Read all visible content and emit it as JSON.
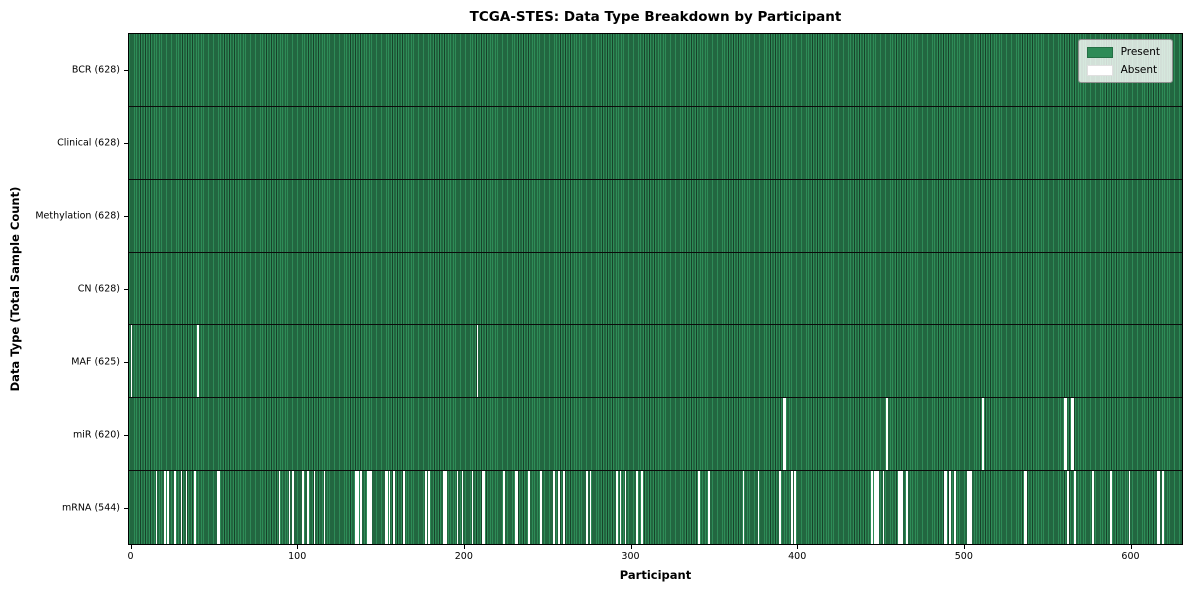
{
  "title": "TCGA-STES: Data Type Breakdown by Participant",
  "chart_data": {
    "type": "heatmap",
    "title": "TCGA-STES: Data Type Breakdown by Participant",
    "xlabel": "Participant",
    "ylabel": "Data Type (Total Sample Count)",
    "n_participants": 628,
    "xlim": [
      -1.5,
      631.5
    ],
    "x_ticks": [
      0,
      100,
      200,
      300,
      400,
      500,
      600
    ],
    "grid": false,
    "legend": {
      "position": "upper right",
      "entries": [
        {
          "label": "Present",
          "color": "#2e8b57"
        },
        {
          "label": "Absent",
          "color": "#ffffff"
        }
      ]
    },
    "colors": {
      "present": "#2e8b57",
      "present_edge": "#17432a",
      "absent": "#ffffff",
      "separator": "#0b0b0b"
    },
    "rows": [
      {
        "name": "BCR",
        "label": "BCR (628)",
        "present_count": 628,
        "absent_participants": []
      },
      {
        "name": "Clinical",
        "label": "Clinical (628)",
        "present_count": 628,
        "absent_participants": []
      },
      {
        "name": "Methylation",
        "label": "Methylation (628)",
        "present_count": 628,
        "absent_participants": []
      },
      {
        "name": "CN",
        "label": "CN (628)",
        "present_count": 628,
        "absent_participants": []
      },
      {
        "name": "MAF",
        "label": "MAF (625)",
        "present_count": 625,
        "absent_participants": [
          0,
          40,
          208
        ]
      },
      {
        "name": "miR",
        "label": "miR (620)",
        "present_count": 620,
        "absent_participants": [
          392,
          393,
          454,
          512,
          561,
          562,
          565,
          566
        ]
      },
      {
        "name": "mRNA",
        "label": "mRNA (544)",
        "present_count": 544,
        "absent_participants": [
          15,
          20,
          22,
          26,
          30,
          33,
          38,
          52,
          53,
          89,
          95,
          97,
          103,
          106,
          110,
          116,
          135,
          136,
          138,
          142,
          143,
          144,
          153,
          154,
          155,
          158,
          164,
          177,
          179,
          188,
          189,
          196,
          199,
          205,
          211,
          212,
          224,
          231,
          232,
          239,
          246,
          254,
          257,
          260,
          274,
          276,
          292,
          294,
          297,
          304,
          307,
          341,
          347,
          368,
          377,
          390,
          397,
          399,
          445,
          447,
          448,
          449,
          452,
          461,
          462,
          463,
          466,
          489,
          490,
          492,
          495,
          503,
          504,
          505,
          537,
          538,
          563,
          567,
          578,
          589,
          600,
          617,
          618,
          620
        ]
      }
    ]
  }
}
